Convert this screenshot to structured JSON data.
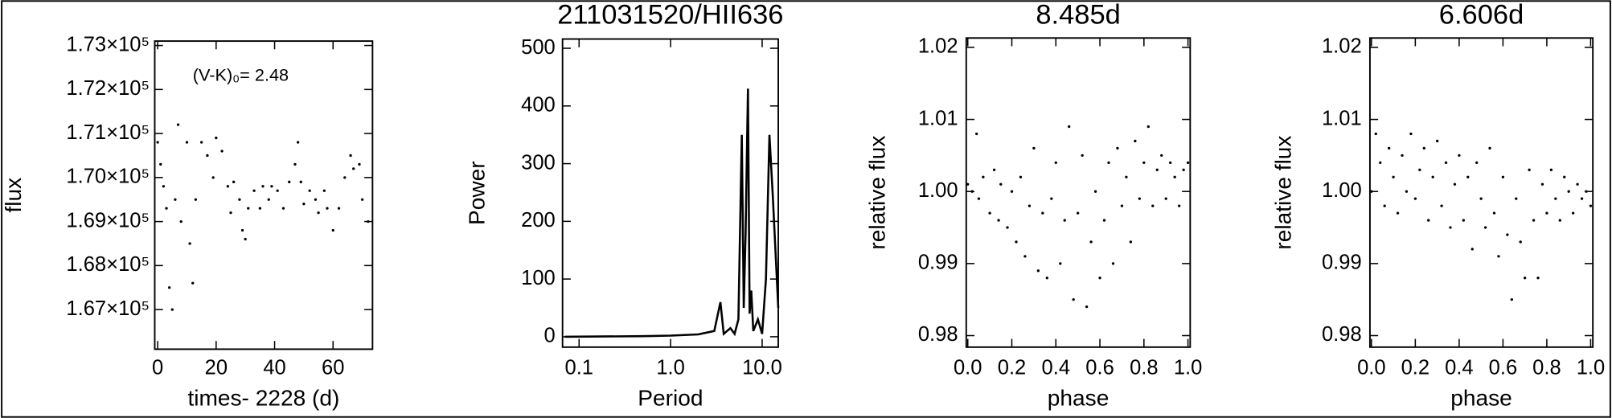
{
  "chart_data": [
    {
      "type": "scatter",
      "xlabel": "times- 2228 (d)",
      "ylabel": "flux",
      "annotation": "(V-K)₀= 2.48",
      "xlim": [
        -1,
        73.5
      ],
      "ylim": [
        166100,
        173100
      ],
      "xticks": [
        0,
        20,
        40,
        60
      ],
      "yticks": [
        {
          "value": 167000,
          "label": "1.67×10⁵"
        },
        {
          "value": 168000,
          "label": "1.68×10⁵"
        },
        {
          "value": 169000,
          "label": "1.69×10⁵"
        },
        {
          "value": 170000,
          "label": "1.70×10⁵"
        },
        {
          "value": 171000,
          "label": "1.71×10⁵"
        },
        {
          "value": 172000,
          "label": "1.72×10⁵"
        },
        {
          "value": 173000,
          "label": "1.73×10⁵"
        }
      ],
      "color": "#000000",
      "x": [
        0,
        1,
        2,
        3,
        4,
        5,
        6,
        7,
        8,
        10,
        11,
        12,
        13,
        15,
        17,
        19,
        20,
        22,
        24,
        25,
        26,
        28,
        29,
        30,
        31,
        33,
        35,
        36,
        38,
        39,
        41,
        43,
        45,
        47,
        48,
        49,
        50,
        52,
        54,
        55,
        57,
        58,
        60,
        62,
        64,
        66,
        67,
        69,
        70,
        72
      ],
      "values": [
        170800,
        170300,
        169800,
        169300,
        167500,
        167000,
        169500,
        171200,
        169000,
        170800,
        168500,
        167600,
        169500,
        170800,
        170500,
        170000,
        170900,
        170600,
        169800,
        169200,
        169900,
        169500,
        168800,
        168600,
        169300,
        169700,
        169300,
        169800,
        169500,
        169800,
        169700,
        169300,
        169900,
        170300,
        170800,
        169900,
        169400,
        169700,
        169500,
        169200,
        169700,
        169300,
        168800,
        169300,
        170000,
        170500,
        170200,
        170300,
        169500,
        169000
      ]
    },
    {
      "type": "line",
      "title": "211031520/HII636",
      "xlabel": "Period",
      "ylabel": "Power",
      "xlog": true,
      "xlim": [
        0.066,
        15
      ],
      "ylim": [
        -18,
        516
      ],
      "xticks": [
        0.1,
        {
          "value": 1,
          "label": "1.0"
        },
        {
          "value": 10,
          "label": "10.0"
        }
      ],
      "yticks": [
        0,
        100,
        200,
        300,
        400,
        500
      ],
      "color": "#000000",
      "x": [
        0.07,
        0.5,
        1,
        2,
        3,
        3.5,
        3.8,
        4.5,
        5,
        5.5,
        6,
        6.3,
        6.6,
        7,
        7.3,
        7.6,
        8,
        9,
        10,
        11,
        12,
        13,
        15
      ],
      "values": [
        0,
        1,
        2,
        4,
        10,
        60,
        5,
        15,
        5,
        30,
        350,
        50,
        180,
        430,
        40,
        80,
        10,
        30,
        5,
        100,
        350,
        250,
        50
      ]
    },
    {
      "type": "scatter",
      "title": "8.485d",
      "xlabel": "phase",
      "ylabel": "relative flux",
      "xlim": [
        -0.007,
        1.01
      ],
      "ylim": [
        0.9784,
        1.0213
      ],
      "xticks": [
        {
          "value": 0,
          "label": "0.0"
        },
        0.2,
        0.4,
        0.6,
        0.8,
        {
          "value": 1,
          "label": "1.0"
        }
      ],
      "yticks": [
        0.98,
        0.99,
        {
          "value": 1,
          "label": "1.00"
        },
        1.01,
        1.02
      ],
      "color": "#000000",
      "x": [
        0,
        0.02,
        0.04,
        0.05,
        0.07,
        0.1,
        0.12,
        0.14,
        0.15,
        0.18,
        0.2,
        0.22,
        0.24,
        0.26,
        0.28,
        0.3,
        0.32,
        0.34,
        0.36,
        0.38,
        0.4,
        0.42,
        0.44,
        0.46,
        0.48,
        0.5,
        0.52,
        0.54,
        0.56,
        0.58,
        0.6,
        0.62,
        0.64,
        0.66,
        0.68,
        0.7,
        0.72,
        0.74,
        0.76,
        0.78,
        0.8,
        0.82,
        0.84,
        0.86,
        0.88,
        0.9,
        0.92,
        0.94,
        0.96,
        0.98,
        1
      ],
      "values": [
        1.001,
        1.0,
        1.008,
        0.999,
        1.002,
        0.997,
        1.003,
        0.996,
        1.001,
        0.995,
        1.0,
        0.993,
        1.002,
        0.991,
        0.998,
        1.006,
        0.989,
        0.997,
        0.988,
        0.999,
        1.004,
        0.99,
        0.996,
        1.009,
        0.985,
        0.997,
        1.005,
        0.984,
        0.993,
        1.0,
        0.988,
        0.996,
        1.004,
        0.99,
        1.006,
        0.998,
        1.002,
        0.993,
        1.007,
        0.999,
        1.004,
        1.009,
        0.998,
        1.003,
        1.005,
        0.999,
        1.004,
        1.002,
        0.998,
        1.003,
        1.004
      ]
    },
    {
      "type": "scatter",
      "title": "6.606d",
      "xlabel": "phase",
      "ylabel": "relative flux",
      "xlim": [
        -0.007,
        1.01
      ],
      "ylim": [
        0.9784,
        1.0213
      ],
      "xticks": [
        {
          "value": 0,
          "label": "0.0"
        },
        0.2,
        0.4,
        0.6,
        0.8,
        {
          "value": 1,
          "label": "1.0"
        }
      ],
      "yticks": [
        0.98,
        0.99,
        {
          "value": 1,
          "label": "1.00"
        },
        1.01,
        1.02
      ],
      "color": "#000000",
      "x": [
        0,
        0.02,
        0.04,
        0.06,
        0.08,
        0.1,
        0.12,
        0.14,
        0.16,
        0.18,
        0.2,
        0.22,
        0.24,
        0.26,
        0.28,
        0.3,
        0.32,
        0.34,
        0.36,
        0.38,
        0.4,
        0.42,
        0.44,
        0.46,
        0.48,
        0.5,
        0.52,
        0.54,
        0.56,
        0.58,
        0.6,
        0.62,
        0.64,
        0.66,
        0.68,
        0.7,
        0.72,
        0.74,
        0.76,
        0.78,
        0.8,
        0.82,
        0.84,
        0.86,
        0.88,
        0.9,
        0.92,
        0.94,
        0.96,
        0.98,
        1
      ],
      "values": [
        1.0,
        1.008,
        1.004,
        0.998,
        1.006,
        1.002,
        0.997,
        1.005,
        1.0,
        1.008,
        0.999,
        1.003,
        1.006,
        0.996,
        1.002,
        1.007,
        0.998,
        1.004,
        0.995,
        1.001,
        1.005,
        0.996,
        1.002,
        0.992,
        1.004,
        0.999,
        0.995,
        1.006,
        0.997,
        0.991,
        1.002,
        0.994,
        0.985,
        0.999,
        0.993,
        0.988,
        1.003,
        0.996,
        0.988,
        1.001,
        0.997,
        1.003,
        0.999,
        0.996,
        1.002,
        1.0,
        0.997,
        1.001,
        0.999,
        1.0,
        0.998
      ]
    }
  ]
}
